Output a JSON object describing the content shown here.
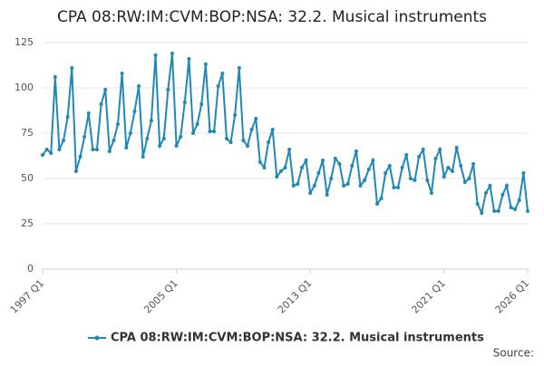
{
  "chart_data": {
    "type": "line",
    "title": "CPA 08:RW:IM:CVM:BOP:NSA: 32.2. Musical instruments",
    "source": "Source:",
    "categories": [
      "1997 Q1",
      null,
      null,
      null,
      null,
      null,
      null,
      null,
      null,
      null,
      null,
      null,
      null,
      null,
      null,
      null,
      null,
      null,
      null,
      null,
      null,
      null,
      null,
      null,
      null,
      null,
      null,
      null,
      null,
      null,
      null,
      null,
      "2005 Q1",
      null,
      null,
      null,
      null,
      null,
      null,
      null,
      null,
      null,
      null,
      null,
      null,
      null,
      null,
      null,
      null,
      null,
      null,
      null,
      null,
      null,
      null,
      null,
      null,
      null,
      null,
      null,
      null,
      null,
      null,
      null,
      "2013 Q1",
      null,
      null,
      null,
      null,
      null,
      null,
      null,
      null,
      null,
      null,
      null,
      null,
      null,
      null,
      null,
      null,
      null,
      null,
      null,
      null,
      null,
      null,
      null,
      null,
      null,
      null,
      null,
      null,
      null,
      null,
      null,
      "2021 Q1",
      null,
      null,
      null,
      null,
      null,
      null,
      null,
      null,
      null,
      null,
      null,
      null,
      null,
      null,
      null,
      null,
      null,
      null,
      null,
      "2026 Q1"
    ],
    "series": [
      {
        "name": "CPA 08:RW:IM:CVM:BOP:NSA: 32.2. Musical instruments",
        "color": "#1f88b8",
        "values": [
          63,
          66,
          64,
          106,
          66,
          71,
          84,
          111,
          54,
          62,
          73,
          86,
          66,
          66,
          91,
          99,
          65,
          71,
          80,
          108,
          67,
          75,
          87,
          101,
          62,
          72,
          82,
          118,
          68,
          72,
          99,
          119,
          68,
          73,
          92,
          116,
          75,
          80,
          91,
          113,
          76,
          76,
          101,
          108,
          72,
          70,
          85,
          111,
          71,
          68,
          77,
          83,
          59,
          56,
          70,
          77,
          51,
          54,
          56,
          66,
          46,
          47,
          56,
          60,
          42,
          46,
          53,
          60,
          41,
          50,
          61,
          58,
          46,
          47,
          57,
          65,
          46,
          49,
          55,
          60,
          36,
          39,
          53,
          57,
          45,
          45,
          56,
          63,
          50,
          49,
          62,
          66,
          49,
          42,
          61,
          66,
          51,
          56,
          54,
          67,
          57,
          48,
          50,
          58,
          36,
          31,
          42,
          46,
          32,
          32,
          41,
          46,
          34,
          33,
          38,
          53,
          32
        ]
      }
    ],
    "ylim": [
      0,
      125
    ],
    "yticks": [
      0,
      25,
      50,
      75,
      100,
      125
    ],
    "grid": true,
    "legend": "bottom"
  }
}
